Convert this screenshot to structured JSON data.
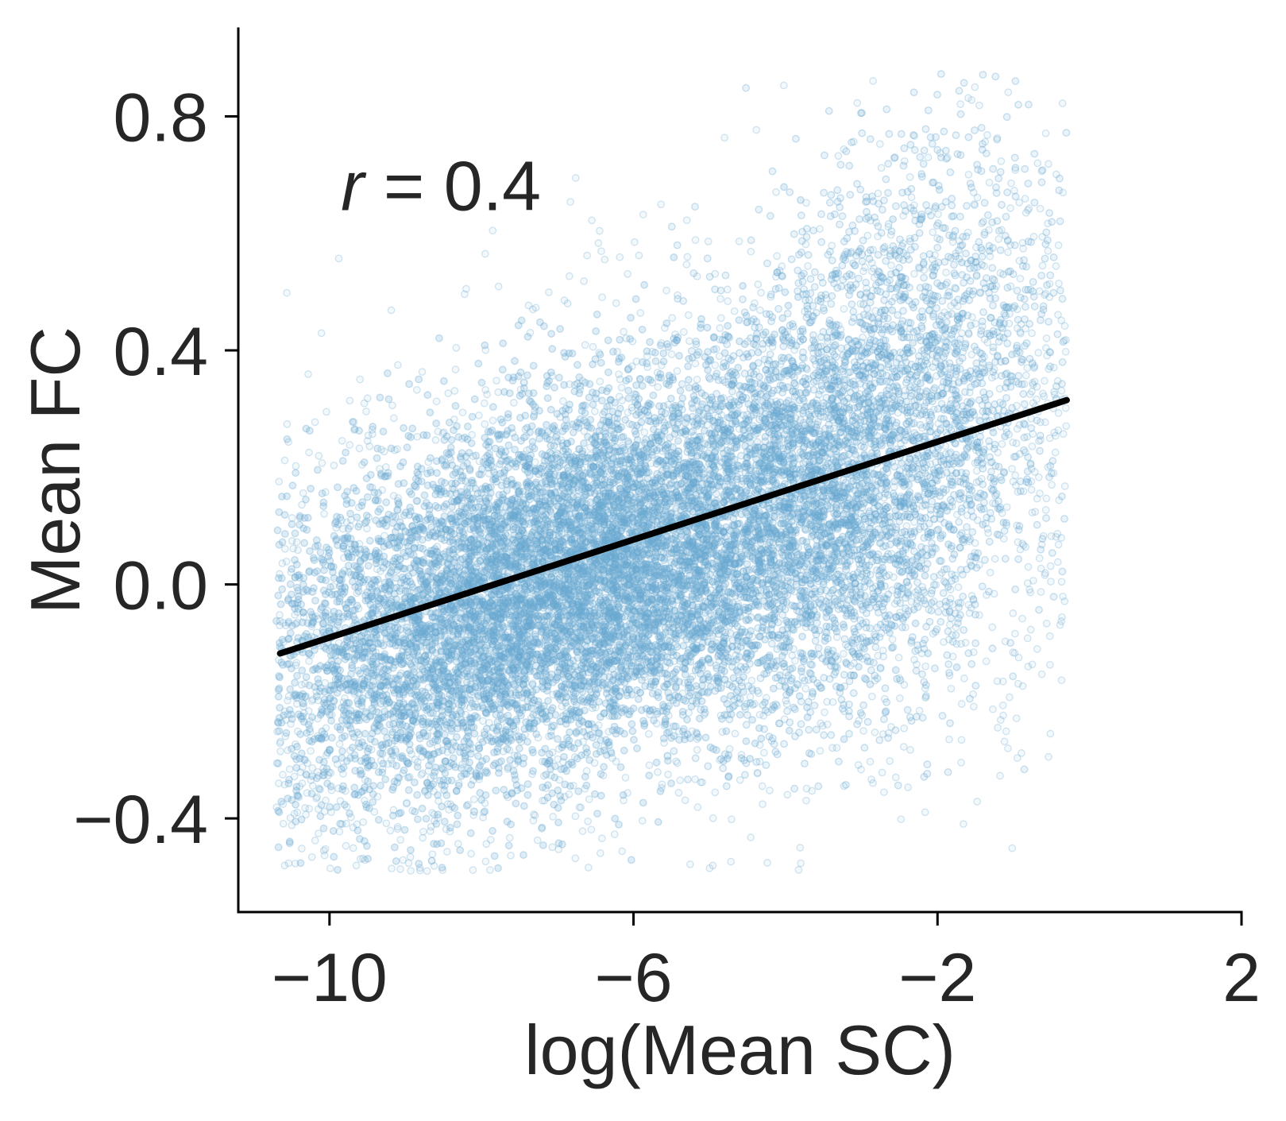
{
  "chart_data": {
    "type": "scatter",
    "title": "",
    "xlabel": "log(Mean SC)",
    "ylabel": "Mean FC",
    "xlim": [
      -11.2,
      2.0
    ],
    "ylim": [
      -0.56,
      0.95
    ],
    "x_ticks": [
      -10,
      -6,
      -2,
      2
    ],
    "x_tick_labels": [
      "−10",
      "−6",
      "−2",
      "2"
    ],
    "y_ticks": [
      -0.4,
      0.0,
      0.4,
      0.8
    ],
    "y_tick_labels": [
      "−0.4",
      "0.0",
      "0.4",
      "0.8"
    ],
    "grid": false,
    "legend": null,
    "point_color": "#6aaad2",
    "line_color": "#000000",
    "regression_line": {
      "x": [
        -10.65,
        -0.3
      ],
      "y": [
        -0.118,
        0.315
      ]
    },
    "annotation": {
      "variable": "r",
      "text": " = 0.4",
      "x": -9.85,
      "y": 0.64
    },
    "scatter_density": {
      "note_points": "dense cloud of ~ tens of thousands of semi-transparent points",
      "x_range": [
        -10.7,
        -0.3
      ],
      "y_range": [
        -0.49,
        0.88
      ],
      "core_x": [
        -10.0,
        -3.0
      ],
      "core_y": [
        -0.3,
        0.3
      ]
    }
  }
}
